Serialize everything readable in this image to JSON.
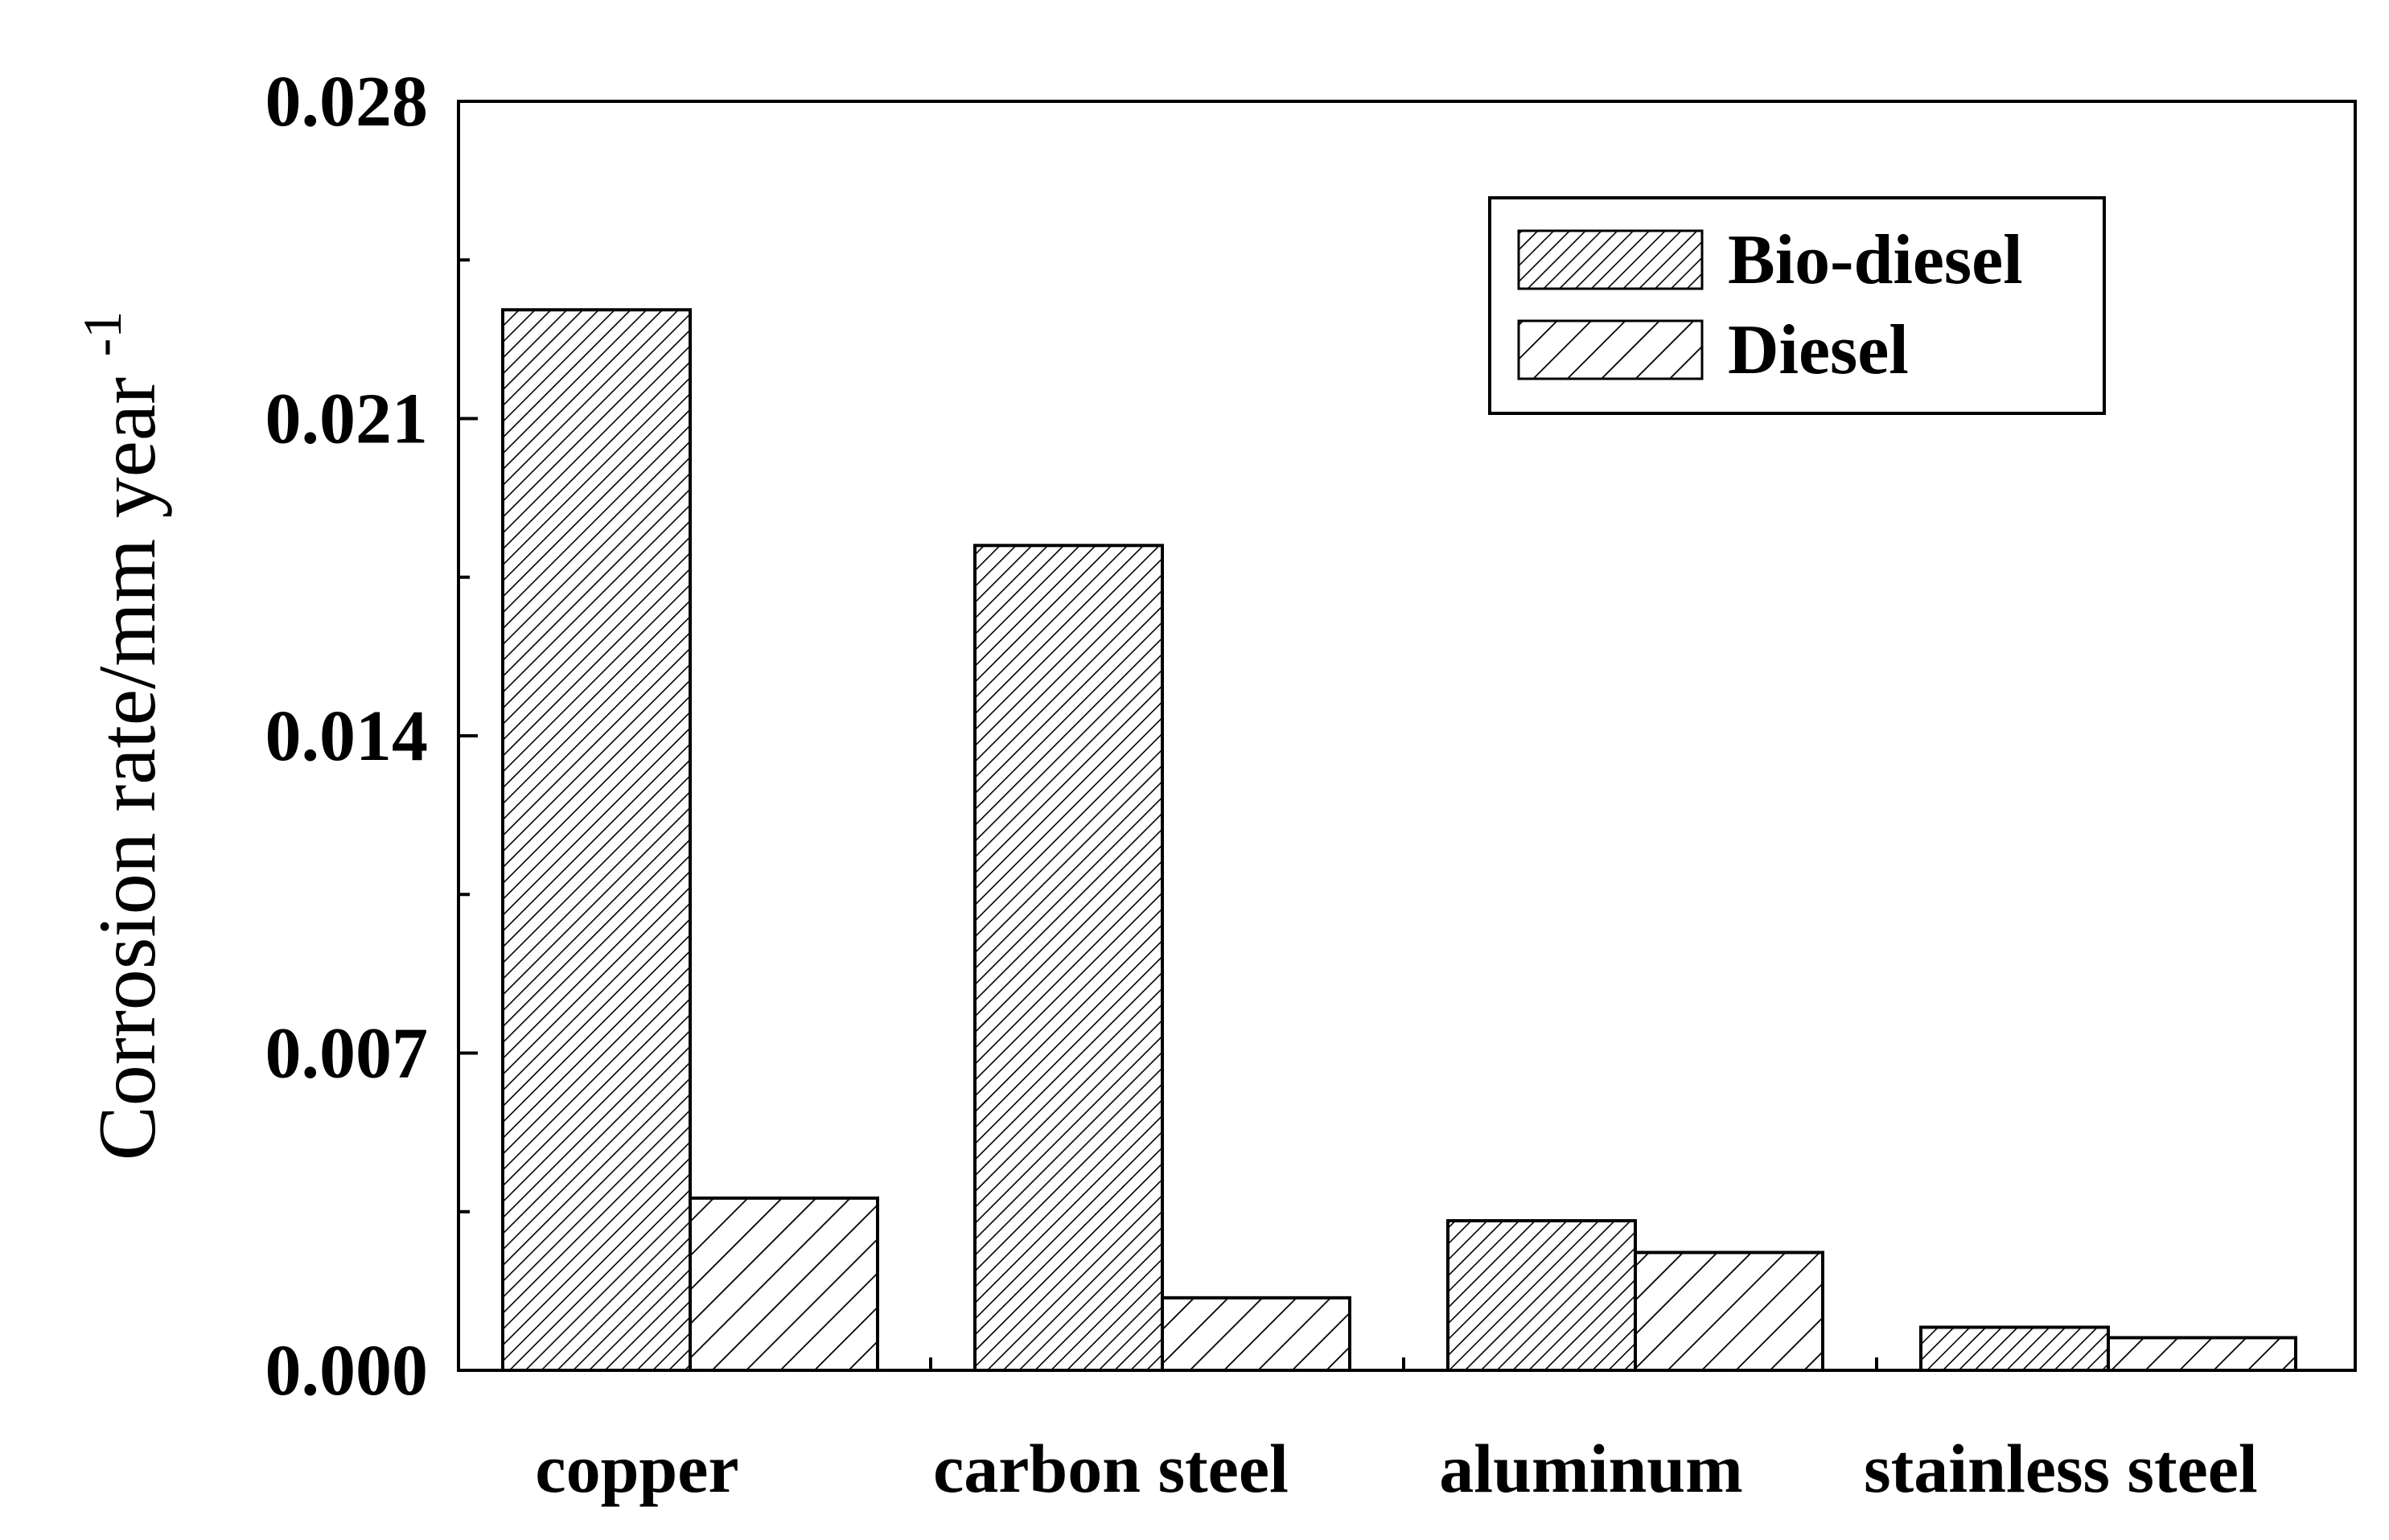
{
  "chart_data": {
    "type": "bar",
    "title": "",
    "xlabel": "",
    "ylabel": {
      "text": "Corrosion rate/mm year",
      "superscript": "-1"
    },
    "ylim": [
      0,
      0.028
    ],
    "y_ticks": [
      "0.000",
      "0.007",
      "0.014",
      "0.021",
      "0.028"
    ],
    "categories": [
      "copper",
      "carbon steel",
      "aluminum",
      "stainless steel"
    ],
    "series": [
      {
        "name": "Bio-diesel",
        "values": [
          0.0234,
          0.0182,
          0.0033,
          0.00095
        ]
      },
      {
        "name": "Diesel",
        "values": [
          0.0038,
          0.0016,
          0.0026,
          0.00072
        ]
      }
    ],
    "legend": {
      "position": "top-right"
    },
    "grid": false
  }
}
